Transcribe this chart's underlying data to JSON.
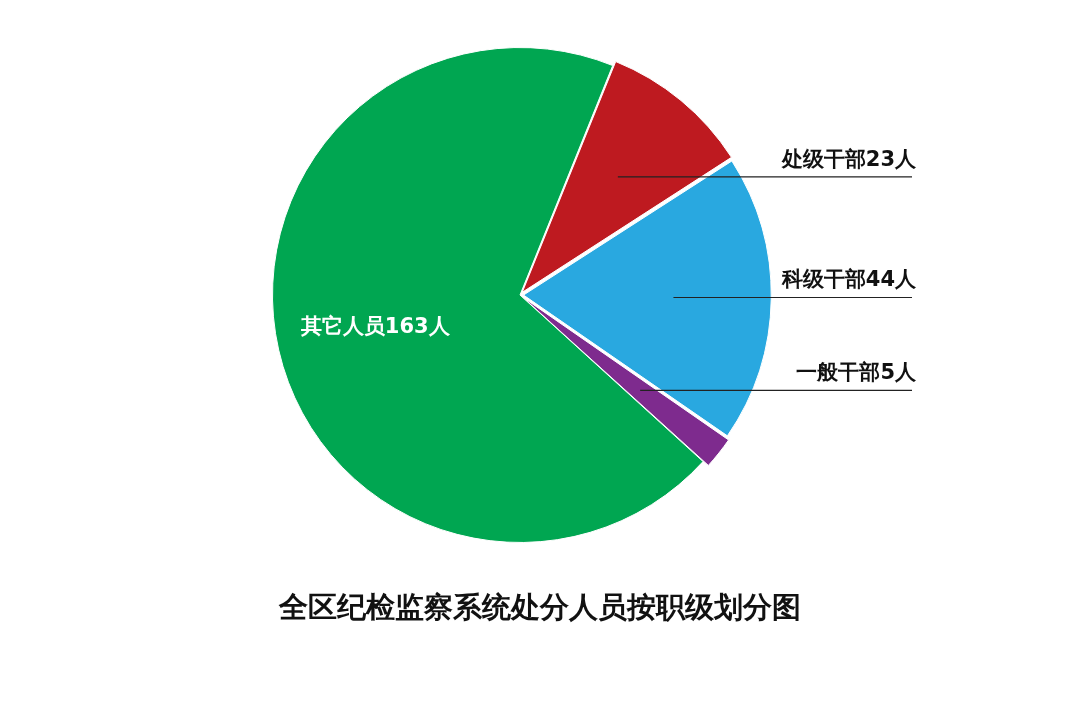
{
  "chart_data": {
    "type": "pie",
    "title": "全区纪检监察系统处分人员按职级划分图",
    "categories": [
      "处级干部23人",
      "科级干部44人",
      "一般干部5人",
      "其它人员163人"
    ],
    "values": [
      23,
      44,
      5,
      163
    ],
    "colors": [
      "#be1a20",
      "#29a8e0",
      "#7e2b8e",
      "#00a651"
    ]
  }
}
